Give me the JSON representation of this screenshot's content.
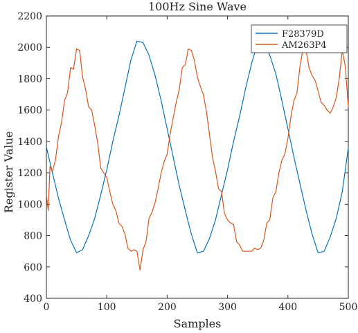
{
  "chart_data": {
    "type": "line",
    "title": "100Hz Sine Wave",
    "xlabel": "Samples",
    "ylabel": "Register Value",
    "xlim": [
      0,
      500
    ],
    "ylim": [
      400,
      2200
    ],
    "x_ticks": [
      0,
      100,
      200,
      300,
      400,
      500
    ],
    "y_ticks": [
      400,
      600,
      800,
      1000,
      1200,
      1400,
      1600,
      1800,
      2000,
      2200
    ],
    "grid": false,
    "legend_position": "top-right",
    "series": [
      {
        "name": "F28379D",
        "color": "#0072bd",
        "x": [
          0,
          10,
          20,
          30,
          40,
          50,
          60,
          70,
          80,
          90,
          100,
          110,
          120,
          130,
          140,
          150,
          160,
          170,
          180,
          190,
          200,
          210,
          220,
          230,
          240,
          250,
          260,
          270,
          280,
          290,
          300,
          310,
          320,
          330,
          340,
          350,
          360,
          370,
          380,
          390,
          400,
          410,
          420,
          430,
          440,
          450,
          460,
          470,
          480,
          490,
          500
        ],
        "y": [
          1365,
          1200,
          1040,
          900,
          770,
          690,
          710,
          800,
          910,
          1060,
          1220,
          1400,
          1560,
          1740,
          1920,
          2040,
          2030,
          1950,
          1820,
          1660,
          1480,
          1300,
          1120,
          960,
          810,
          690,
          700,
          780,
          900,
          1060,
          1220,
          1400,
          1560,
          1740,
          1900,
          2030,
          2030,
          1950,
          1830,
          1660,
          1480,
          1300,
          1130,
          960,
          810,
          690,
          700,
          790,
          910,
          1080,
          1360
        ]
      },
      {
        "name": "AM263P4",
        "color": "#d95319",
        "x": [
          0,
          3,
          6,
          10,
          15,
          20,
          25,
          30,
          35,
          40,
          45,
          50,
          55,
          60,
          65,
          70,
          75,
          80,
          85,
          90,
          95,
          100,
          105,
          110,
          115,
          120,
          125,
          130,
          135,
          140,
          145,
          150,
          155,
          160,
          165,
          170,
          175,
          180,
          185,
          190,
          195,
          200,
          205,
          210,
          215,
          220,
          225,
          230,
          235,
          240,
          245,
          250,
          255,
          260,
          265,
          270,
          275,
          280,
          285,
          290,
          295,
          300,
          305,
          310,
          315,
          320,
          325,
          330,
          335,
          340,
          345,
          350,
          355,
          360,
          365,
          370,
          375,
          380,
          385,
          390,
          395,
          400,
          405,
          410,
          415,
          420,
          425,
          430,
          435,
          440,
          445,
          450,
          455,
          460,
          465,
          470,
          475,
          480,
          485,
          490,
          495,
          500
        ],
        "y": [
          1060,
          960,
          1240,
          1210,
          1280,
          1430,
          1520,
          1660,
          1710,
          1870,
          1860,
          1990,
          1980,
          1810,
          1730,
          1620,
          1600,
          1500,
          1390,
          1230,
          1200,
          1170,
          1080,
          1000,
          960,
          880,
          860,
          810,
          720,
          700,
          710,
          700,
          580,
          710,
          760,
          910,
          950,
          1010,
          1100,
          1200,
          1270,
          1320,
          1450,
          1550,
          1650,
          1730,
          1870,
          1890,
          1990,
          1980,
          1920,
          1810,
          1750,
          1700,
          1590,
          1450,
          1300,
          1210,
          1100,
          1080,
          940,
          900,
          880,
          870,
          760,
          740,
          700,
          700,
          700,
          700,
          720,
          710,
          720,
          770,
          880,
          900,
          1040,
          1080,
          1200,
          1280,
          1320,
          1420,
          1560,
          1660,
          1710,
          1880,
          1990,
          1980,
          1870,
          1820,
          1790,
          1720,
          1650,
          1630,
          1600,
          1580,
          1620,
          1680,
          1800,
          1980,
          1880,
          1620
        ]
      }
    ]
  }
}
